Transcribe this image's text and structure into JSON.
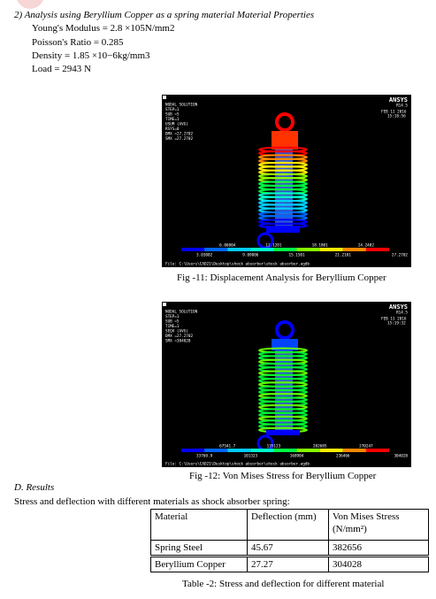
{
  "section": {
    "heading": "2) Analysis using Beryllium Copper as a spring material Material Properties",
    "properties": [
      "Young's Modulus = 2.8 ×105N/mm2",
      "Poisson's Ratio = 0.285",
      "Density = 1.85 ×10−6kg/mm3",
      "Load = 2943 N"
    ]
  },
  "figures": [
    {
      "software": "ANSYS",
      "version": "R14.5",
      "date": "FEB 11 2016",
      "time": "15:18:56",
      "info": [
        "NODAL SOLUTION",
        "STEP=1",
        "SUB =5",
        "TIME=1",
        "USUM     (AVG)",
        "RSYS=0",
        "DMX =27.2702",
        "SMX =27.2702"
      ],
      "legend_top": [
        "6.06004",
        "12.1201",
        "18.1801",
        "24.2402"
      ],
      "legend_bottom": [
        "3.03002",
        "9.09006",
        "15.1501",
        "21.2101",
        "27.2702"
      ],
      "file": "File: C:\\Users\\CAD21\\Desktop\\shock absorber\\shock absorber.agdb",
      "caption": "Fig -11: Displacement Analysis for Beryllium Copper"
    },
    {
      "software": "ANSYS",
      "version": "R14.5",
      "date": "FEB 11 2016",
      "time": "15:19:32",
      "info": [
        "NODAL SOLUTION",
        "STEP=1",
        "SUB =5",
        "TIME=1",
        "SEQV     (AVG)",
        "DMX =27.2702",
        "SMX =304028"
      ],
      "legend_top": [
        "67541.7",
        "135123",
        "202685",
        "270247"
      ],
      "legend_bottom": [
        "33760.9",
        "101323",
        "168904",
        "236466",
        "304028"
      ],
      "file": "File: C:\\Users\\CAD21\\Desktop\\shock absorber\\shock absorber.agdb",
      "caption": "Fig -12: Von Mises Stress for Beryllium Copper"
    }
  ],
  "results": {
    "heading": "D.   Results",
    "intro": "Stress and deflection with different materials as shock absorber spring:",
    "table": {
      "header": [
        "Material",
        "Deflection (mm)",
        "Von Mises Stress (N/mm²)"
      ],
      "rows": [
        [
          "Spring Steel",
          "45.67",
          "382656"
        ],
        [
          "Beryllium Copper",
          "27.27",
          "304028"
        ]
      ]
    },
    "caption": "Table -2: Stress and deflection for different material"
  }
}
